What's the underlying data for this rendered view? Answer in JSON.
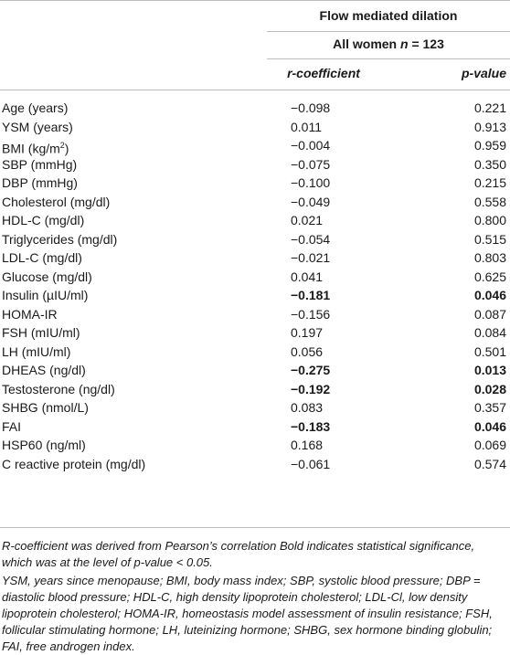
{
  "header": {
    "group_title": "Flow mediated dilation",
    "subgroup_title_prefix": "All women ",
    "subgroup_n": "n",
    "subgroup_value": " = 123",
    "col_r": "r-coefficient",
    "col_p": "p-value"
  },
  "rows": [
    {
      "label": "Age (years)",
      "r": "−0.098",
      "p": "0.221",
      "bold": false
    },
    {
      "label": "YSM (years)",
      "r": "0.011",
      "p": "0.913",
      "bold": false
    },
    {
      "label": "BMI (kg/m",
      "sup": "2",
      "label_tail": ")",
      "r": "−0.004",
      "p": "0.959",
      "bold": false
    },
    {
      "label": "SBP (mmHg)",
      "r": "−0.075",
      "p": "0.350",
      "bold": false
    },
    {
      "label": "DBP (mmHg)",
      "r": "−0.100",
      "p": "0.215",
      "bold": false
    },
    {
      "label": "Cholesterol (mg/dl)",
      "r": "−0.049",
      "p": "0.558",
      "bold": false
    },
    {
      "label": "HDL-C (mg/dl)",
      "r": "0.021",
      "p": "0.800",
      "bold": false
    },
    {
      "label": "Triglycerides (mg/dl)",
      "r": "−0.054",
      "p": "0.515",
      "bold": false
    },
    {
      "label": "LDL-C (mg/dl)",
      "r": "−0.021",
      "p": "0.803",
      "bold": false
    },
    {
      "label": "Glucose (mg/dl)",
      "r": "0.041",
      "p": "0.625",
      "bold": false
    },
    {
      "label": "Insulin (µIU/ml)",
      "r": "−0.181",
      "p": "0.046",
      "bold": true
    },
    {
      "label": "HOMA-IR",
      "r": "−0.156",
      "p": "0.087",
      "bold": false
    },
    {
      "label": "FSH (mIU/ml)",
      "r": "0.197",
      "p": "0.084",
      "bold": false
    },
    {
      "label": "LH (mIU/ml)",
      "r": "0.056",
      "p": "0.501",
      "bold": false
    },
    {
      "label": "DHEAS (ng/dl)",
      "r": "−0.275",
      "p": "0.013",
      "bold": true
    },
    {
      "label": "Testosterone (ng/dl)",
      "r": "−0.192",
      "p": "0.028",
      "bold": true
    },
    {
      "label": "SHBG (nmol/L)",
      "r": "0.083",
      "p": "0.357",
      "bold": false
    },
    {
      "label": "FAI",
      "r": "−0.183",
      "p": "0.046",
      "bold": true
    },
    {
      "label": "HSP60 (ng/ml)",
      "r": "0.168",
      "p": "0.069",
      "bold": false
    },
    {
      "label": "C reactive protein (mg/dl)",
      "r": "−0.061",
      "p": "0.574",
      "bold": false
    }
  ],
  "footnotes": {
    "note1": "R-coefficient was derived from Pearson’s correlation Bold indicates statistical significance, which was at the level of p-value < 0.05.",
    "note2": "YSM, years since menopause; BMI, body mass index; SBP, systolic blood pressure; DBP = diastolic blood pressure; HDL-C, high density lipoprotein cholesterol; LDL-Cl, low density lipoprotein cholesterol; HOMA-IR, homeostasis model assessment of insulin resistance; FSH, follicular stimulating hormone; LH, luteinizing hormone; SHBG, sex hormone binding globulin; FAI, free androgen index."
  }
}
